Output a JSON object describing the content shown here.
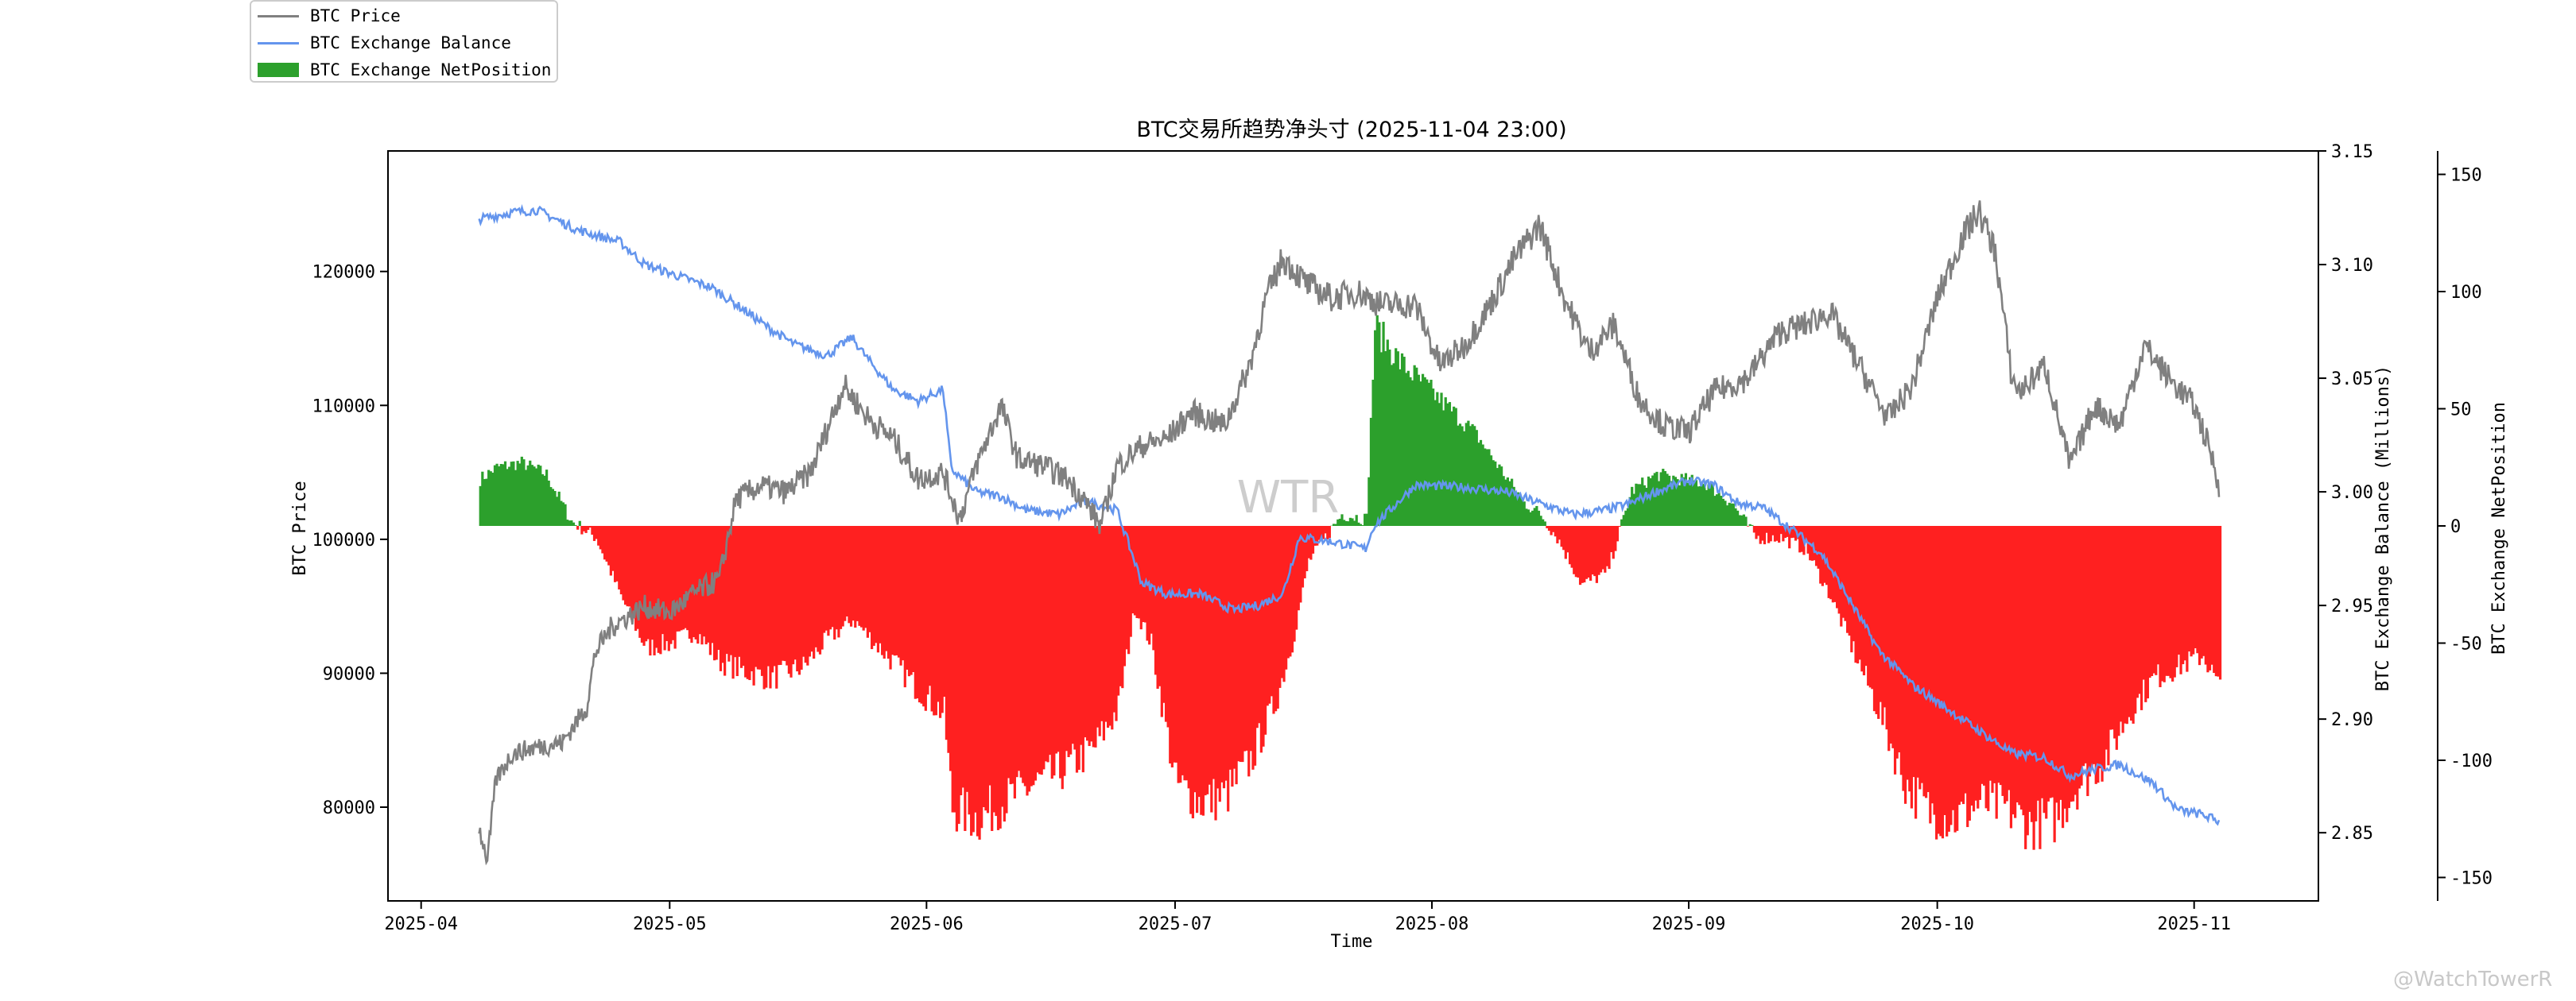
{
  "chart_data": {
    "type": "line",
    "title": "BTC交易所趋势净头寸 (2025-11-04 23:00)",
    "xlabel": "Time",
    "ylabel_left": "BTC Price",
    "ylabel_right1": "BTC Exchange Balance (Millions)",
    "ylabel_right2": "BTC Exchange NetPosition",
    "x_ticks": [
      "2025-04",
      "2025-05",
      "2025-06",
      "2025-07",
      "2025-08",
      "2025-09",
      "2025-10",
      "2025-11"
    ],
    "x_range": [
      "2025-03-28",
      "2025-11-16"
    ],
    "price_axis": {
      "ylim": [
        73000,
        129000
      ],
      "ticks": [
        80000,
        90000,
        100000,
        110000,
        120000
      ]
    },
    "balance_axis": {
      "ylim": [
        2.82,
        3.15
      ],
      "ticks": [
        2.85,
        2.9,
        2.95,
        3.0,
        3.05,
        3.1,
        3.15
      ],
      "tick_labels": [
        "2.85",
        "2.90",
        "2.95",
        "3.00",
        "3.05",
        "3.10",
        "3.15"
      ]
    },
    "netpos_axis": {
      "ylim": [
        -160,
        160
      ],
      "ticks": [
        -150,
        -100,
        -50,
        0,
        50,
        100,
        150
      ]
    },
    "grid": false,
    "legend": "top-left",
    "colors": {
      "price": "#808080",
      "balance": "#6495ED",
      "netpos_pos": "#2ca02c",
      "netpos_neg": "#ff2020"
    },
    "series": [
      {
        "name": "BTC Price",
        "dates": [
          "2025-04-08",
          "2025-04-09",
          "2025-04-10",
          "2025-04-12",
          "2025-04-15",
          "2025-04-18",
          "2025-04-21",
          "2025-04-22",
          "2025-04-24",
          "2025-04-28",
          "2025-05-01",
          "2025-05-04",
          "2025-05-07",
          "2025-05-09",
          "2025-05-12",
          "2025-05-15",
          "2025-05-18",
          "2025-05-22",
          "2025-05-25",
          "2025-05-28",
          "2025-05-31",
          "2025-06-03",
          "2025-06-05",
          "2025-06-07",
          "2025-06-10",
          "2025-06-12",
          "2025-06-15",
          "2025-06-18",
          "2025-06-20",
          "2025-06-22",
          "2025-06-24",
          "2025-06-27",
          "2025-06-30",
          "2025-07-03",
          "2025-07-07",
          "2025-07-10",
          "2025-07-12",
          "2025-07-14",
          "2025-07-17",
          "2025-07-20",
          "2025-07-23",
          "2025-07-26",
          "2025-07-30",
          "2025-08-02",
          "2025-08-05",
          "2025-08-08",
          "2025-08-11",
          "2025-08-14",
          "2025-08-17",
          "2025-08-20",
          "2025-08-23",
          "2025-08-26",
          "2025-08-29",
          "2025-09-01",
          "2025-09-04",
          "2025-09-08",
          "2025-09-12",
          "2025-09-15",
          "2025-09-18",
          "2025-09-22",
          "2025-09-25",
          "2025-09-28",
          "2025-10-01",
          "2025-10-04",
          "2025-10-06",
          "2025-10-08",
          "2025-10-10",
          "2025-10-11",
          "2025-10-14",
          "2025-10-17",
          "2025-10-20",
          "2025-10-23",
          "2025-10-26",
          "2025-10-29",
          "2025-11-01",
          "2025-11-03",
          "2025-11-04"
        ],
        "values": [
          78500,
          76000,
          82000,
          84000,
          84500,
          84800,
          87500,
          91500,
          93500,
          95000,
          94500,
          96000,
          97000,
          103000,
          104000,
          103500,
          105000,
          111500,
          109000,
          107500,
          104500,
          105000,
          101500,
          105500,
          110000,
          106000,
          105500,
          104500,
          103000,
          101000,
          105500,
          107000,
          107500,
          109500,
          108500,
          113000,
          118000,
          121000,
          119000,
          118000,
          118500,
          117500,
          117500,
          113000,
          114500,
          117500,
          121000,
          123500,
          118000,
          114000,
          116000,
          110500,
          108500,
          108000,
          111000,
          112000,
          115500,
          116000,
          117000,
          112500,
          109000,
          111500,
          118000,
          122500,
          124500,
          121500,
          112000,
          111000,
          113000,
          105500,
          110000,
          108500,
          114500,
          112000,
          110000,
          106500,
          104000
        ]
      },
      {
        "name": "BTC Exchange Balance",
        "dates": [
          "2025-04-08",
          "2025-04-12",
          "2025-04-15",
          "2025-04-20",
          "2025-04-25",
          "2025-04-28",
          "2025-05-02",
          "2025-05-06",
          "2025-05-10",
          "2025-05-13",
          "2025-05-16",
          "2025-05-20",
          "2025-05-23",
          "2025-05-25",
          "2025-05-28",
          "2025-05-31",
          "2025-06-03",
          "2025-06-04",
          "2025-06-07",
          "2025-06-10",
          "2025-06-13",
          "2025-06-17",
          "2025-06-20",
          "2025-06-24",
          "2025-06-27",
          "2025-06-30",
          "2025-07-04",
          "2025-07-08",
          "2025-07-11",
          "2025-07-14",
          "2025-07-16",
          "2025-07-20",
          "2025-07-24",
          "2025-07-25",
          "2025-07-30",
          "2025-08-05",
          "2025-08-10",
          "2025-08-14",
          "2025-08-18",
          "2025-08-22",
          "2025-08-25",
          "2025-08-28",
          "2025-09-01",
          "2025-09-04",
          "2025-09-07",
          "2025-09-10",
          "2025-09-14",
          "2025-09-17",
          "2025-09-20",
          "2025-09-24",
          "2025-09-28",
          "2025-10-02",
          "2025-10-06",
          "2025-10-10",
          "2025-10-14",
          "2025-10-17",
          "2025-10-20",
          "2025-10-23",
          "2025-10-27",
          "2025-10-30",
          "2025-11-02",
          "2025-11-04"
        ],
        "values": [
          3.12,
          3.123,
          3.124,
          3.115,
          3.11,
          3.1,
          3.095,
          3.09,
          3.08,
          3.072,
          3.065,
          3.06,
          3.068,
          3.058,
          3.045,
          3.04,
          3.045,
          3.01,
          3.0,
          2.998,
          2.992,
          2.99,
          2.996,
          2.992,
          2.96,
          2.955,
          2.955,
          2.948,
          2.95,
          2.955,
          2.98,
          2.978,
          2.975,
          2.985,
          3.003,
          3.002,
          3.0,
          2.995,
          2.99,
          2.992,
          2.995,
          3.0,
          3.005,
          3.003,
          2.995,
          2.993,
          2.982,
          2.973,
          2.955,
          2.93,
          2.915,
          2.905,
          2.895,
          2.885,
          2.883,
          2.875,
          2.878,
          2.88,
          2.872,
          2.86,
          2.858,
          2.855
        ]
      },
      {
        "name": "BTC Exchange NetPosition",
        "dates": [
          "2025-04-08",
          "2025-04-10",
          "2025-04-13",
          "2025-04-16",
          "2025-04-19",
          "2025-04-22",
          "2025-04-25",
          "2025-04-28",
          "2025-05-01",
          "2025-05-04",
          "2025-05-07",
          "2025-05-10",
          "2025-05-13",
          "2025-05-17",
          "2025-05-20",
          "2025-05-23",
          "2025-05-27",
          "2025-05-31",
          "2025-06-03",
          "2025-06-04",
          "2025-06-07",
          "2025-06-10",
          "2025-06-14",
          "2025-06-17",
          "2025-06-21",
          "2025-06-24",
          "2025-06-26",
          "2025-06-28",
          "2025-07-01",
          "2025-07-04",
          "2025-07-07",
          "2025-07-10",
          "2025-07-13",
          "2025-07-15",
          "2025-07-17",
          "2025-07-21",
          "2025-07-24",
          "2025-07-25",
          "2025-07-28",
          "2025-07-31",
          "2025-08-03",
          "2025-08-06",
          "2025-08-09",
          "2025-08-12",
          "2025-08-14",
          "2025-08-16",
          "2025-08-19",
          "2025-08-22",
          "2025-08-25",
          "2025-08-28",
          "2025-08-31",
          "2025-09-03",
          "2025-09-06",
          "2025-09-09",
          "2025-09-12",
          "2025-09-15",
          "2025-09-18",
          "2025-09-21",
          "2025-09-24",
          "2025-09-27",
          "2025-09-30",
          "2025-10-03",
          "2025-10-06",
          "2025-10-09",
          "2025-10-12",
          "2025-10-15",
          "2025-10-18",
          "2025-10-21",
          "2025-10-24",
          "2025-10-27",
          "2025-10-30",
          "2025-11-02",
          "2025-11-04"
        ],
        "values": [
          20,
          25,
          27,
          22,
          2,
          -5,
          -30,
          -52,
          -50,
          -45,
          -58,
          -62,
          -65,
          -60,
          -48,
          -40,
          -55,
          -70,
          -80,
          -120,
          -125,
          -118,
          -110,
          -105,
          -95,
          -78,
          -35,
          -50,
          -110,
          -118,
          -115,
          -100,
          -75,
          -50,
          -15,
          5,
          3,
          85,
          70,
          60,
          50,
          40,
          25,
          10,
          5,
          -5,
          -25,
          -20,
          15,
          22,
          20,
          18,
          10,
          -5,
          -5,
          -10,
          -30,
          -55,
          -80,
          -110,
          -122,
          -125,
          -118,
          -120,
          -128,
          -125,
          -110,
          -100,
          -80,
          -65,
          -60,
          -55,
          -70
        ]
      }
    ]
  },
  "legend_items": [
    "BTC Price",
    "BTC Exchange Balance",
    "BTC Exchange NetPosition"
  ],
  "watermark_center": "WTR",
  "watermark_corner": "@WatchTowerR"
}
